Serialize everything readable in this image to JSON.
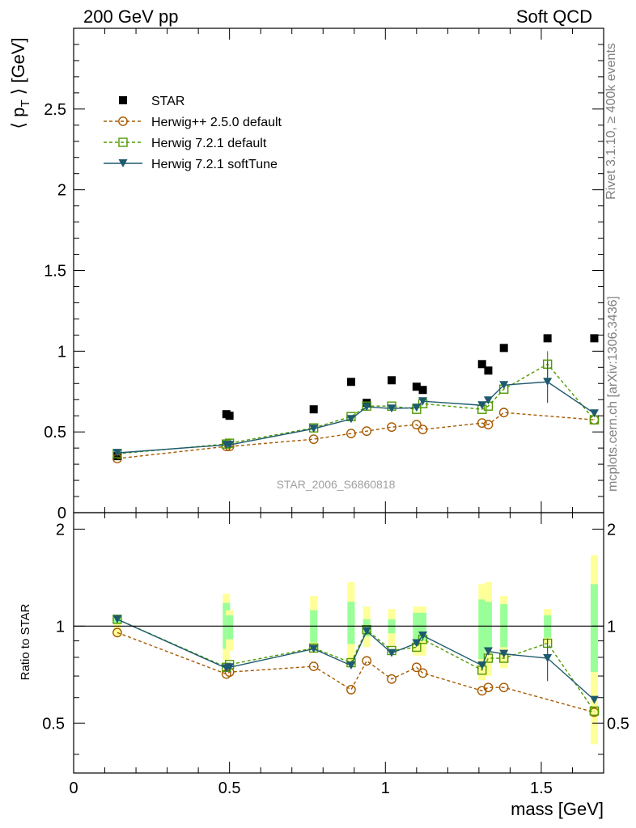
{
  "header": {
    "left": "200 GeV pp",
    "right": "Soft QCD"
  },
  "side_labels": {
    "rivet": "Rivet 3.1.10, ≥ 400k events",
    "mcplots": "mcplots.cern.ch [arXiv:1306.3436]"
  },
  "watermark": "STAR_2006_S6860818",
  "chart_data": {
    "type": "scatter",
    "title": "",
    "xlabel": "mass [GeV]",
    "xlim": [
      0,
      1.7
    ],
    "xticks": [
      "0",
      "0.5",
      "1",
      "1.5"
    ],
    "main": {
      "ylabel": "⟨ p_T ⟩ [GeV]",
      "ylim": [
        0,
        3.0
      ],
      "yticks": [
        "0",
        "0.5",
        "1",
        "1.5",
        "2",
        "2.5"
      ]
    },
    "ratio": {
      "ylabel": "Ratio to STAR",
      "ylim": [
        0.35,
        2.25
      ],
      "yticks_left": [
        "0.5",
        "1",
        "2"
      ],
      "yticks_right": [
        "0.5",
        "1",
        "2"
      ],
      "reference": 1.0
    },
    "x": [
      0.14,
      0.49,
      0.5,
      0.77,
      0.89,
      0.94,
      1.02,
      1.1,
      1.12,
      1.31,
      1.33,
      1.38,
      1.52,
      1.67
    ],
    "legend": [
      "STAR",
      "Herwig++ 2.5.0 default",
      "Herwig 7.2.1 default",
      "Herwig 7.2.1 softTune"
    ],
    "series": [
      {
        "name": "STAR",
        "color": "#000000",
        "marker": "square",
        "values": [
          0.35,
          0.61,
          0.6,
          0.64,
          0.81,
          0.68,
          0.82,
          0.78,
          0.76,
          0.92,
          0.88,
          1.02,
          1.08,
          1.08
        ]
      },
      {
        "name": "Herwig++ 2.5.0 default",
        "color": "#a65a00",
        "marker": "circle",
        "values": [
          0.335,
          0.41,
          0.41,
          0.455,
          0.49,
          0.505,
          0.53,
          0.545,
          0.515,
          0.555,
          0.545,
          0.62,
          null,
          0.575
        ],
        "ratio": [
          0.955,
          0.71,
          0.72,
          0.75,
          0.635,
          0.78,
          0.685,
          0.745,
          0.715,
          0.63,
          0.645,
          0.645,
          null,
          0.54
        ]
      },
      {
        "name": "Herwig 7.2.1 default",
        "color": "#4f9a00",
        "marker": "open-square",
        "values": [
          0.365,
          0.425,
          0.43,
          0.525,
          0.595,
          0.66,
          0.66,
          0.64,
          0.675,
          0.64,
          0.66,
          0.765,
          0.92,
          0.575
        ],
        "ratio": [
          1.05,
          0.745,
          0.76,
          0.855,
          0.77,
          0.975,
          0.84,
          0.86,
          0.91,
          0.73,
          0.795,
          0.795,
          0.885,
          0.545
        ],
        "errors": [
          0,
          0,
          0,
          0,
          0,
          0,
          0,
          0,
          0,
          0,
          0,
          0,
          0.08,
          0
        ]
      },
      {
        "name": "Herwig 7.2.1 softTune",
        "color": "#1e5a6e",
        "marker": "triangle-down",
        "values": [
          0.37,
          0.42,
          0.42,
          0.52,
          0.58,
          0.655,
          0.645,
          0.65,
          0.69,
          0.665,
          0.695,
          0.79,
          0.81,
          0.615
        ],
        "ratio": [
          1.05,
          0.74,
          0.745,
          0.85,
          0.755,
          0.965,
          0.825,
          0.885,
          0.935,
          0.755,
          0.835,
          0.82,
          0.795,
          0.59
        ],
        "errors": [
          0,
          0,
          0,
          0,
          0,
          0,
          0,
          0,
          0,
          0,
          0,
          0,
          0.13,
          0
        ],
        "ratio_errors": [
          0,
          0,
          0,
          0,
          0,
          0,
          0,
          0,
          0,
          0,
          0,
          0,
          0.12,
          0
        ]
      }
    ],
    "uncertainty_bands": {
      "stat_color": "#99ff99",
      "total_color": "#ffff99",
      "stat": [
        [
          1.02,
          1.08
        ],
        [
          0.85,
          1.18
        ],
        [
          0.91,
          1.08
        ],
        [
          0.89,
          1.12
        ],
        [
          0.88,
          1.19
        ],
        [
          0.93,
          1.05
        ],
        [
          0.95,
          1.05
        ],
        [
          0.9,
          1.1
        ],
        [
          0.9,
          1.1
        ],
        [
          0.79,
          1.21
        ],
        [
          0.85,
          1.19
        ],
        [
          0.86,
          1.17
        ],
        [
          0.92,
          1.08
        ],
        [
          0.72,
          1.35
        ]
      ],
      "total": [
        [
          0.93,
          1.08
        ],
        [
          0.78,
          1.26
        ],
        [
          0.84,
          1.12
        ],
        [
          0.84,
          1.24
        ],
        [
          0.76,
          1.37
        ],
        [
          0.86,
          1.15
        ],
        [
          0.87,
          1.13
        ],
        [
          0.81,
          1.15
        ],
        [
          0.81,
          1.15
        ],
        [
          0.68,
          1.35
        ],
        [
          0.7,
          1.37
        ],
        [
          0.74,
          1.24
        ],
        [
          0.88,
          1.13
        ],
        [
          0.43,
          1.66
        ]
      ]
    }
  }
}
